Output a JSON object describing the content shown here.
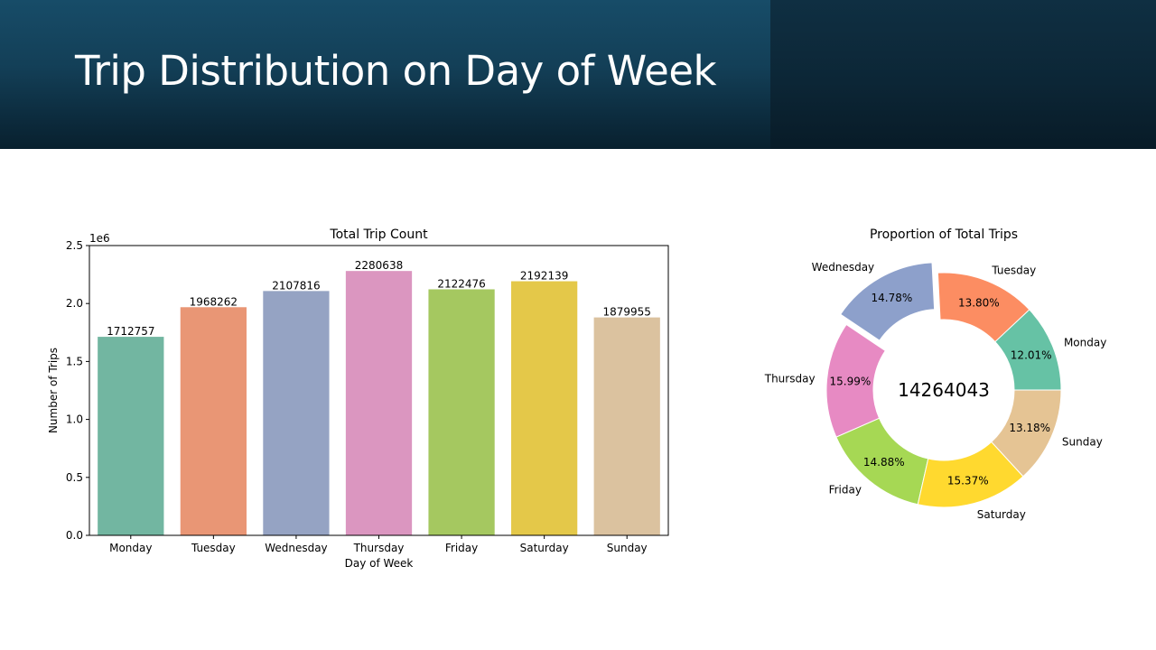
{
  "slide": {
    "title": "Trip Distribution on Day of Week"
  },
  "chart_data": [
    {
      "type": "bar",
      "title": "Total Trip Count",
      "xlabel": "Day of Week",
      "ylabel": "Number of Trips",
      "y_offset_label": "1e6",
      "ylim": [
        0,
        2500000
      ],
      "yticks": [
        0,
        500000,
        1000000,
        1500000,
        2000000,
        2500000
      ],
      "ytick_labels": [
        "0.0",
        "0.5",
        "1.0",
        "1.5",
        "2.0",
        "2.5"
      ],
      "categories": [
        "Monday",
        "Tuesday",
        "Wednesday",
        "Thursday",
        "Friday",
        "Saturday",
        "Sunday"
      ],
      "values": [
        1712757,
        1968262,
        2107816,
        2280638,
        2122476,
        2192139,
        1879955
      ],
      "data_labels": [
        "1712757",
        "1968262",
        "2107816",
        "2280638",
        "2122476",
        "2192139",
        "1879955"
      ],
      "colors": [
        "#72b6a1",
        "#e99675",
        "#95a3c3",
        "#db96c0",
        "#a5c860",
        "#e4c849",
        "#dbc29f"
      ],
      "grid": false,
      "legend": "none"
    },
    {
      "type": "pie",
      "title": "Proportion of Total Trips",
      "center_label": "14264043",
      "donut": true,
      "slices": [
        {
          "label": "Monday",
          "value": 12.01,
          "pct_label": "12.01%",
          "color": "#66c2a5",
          "exploded": false
        },
        {
          "label": "Tuesday",
          "value": 13.8,
          "pct_label": "13.80%",
          "color": "#fc8d62",
          "exploded": false
        },
        {
          "label": "Wednesday",
          "value": 14.78,
          "pct_label": "14.78%",
          "color": "#8da0cb",
          "exploded": true
        },
        {
          "label": "Thursday",
          "value": 15.99,
          "pct_label": "15.99%",
          "color": "#e78ac3",
          "exploded": false
        },
        {
          "label": "Friday",
          "value": 14.88,
          "pct_label": "14.88%",
          "color": "#a6d854",
          "exploded": false
        },
        {
          "label": "Saturday",
          "value": 15.37,
          "pct_label": "15.37%",
          "color": "#ffd92f",
          "exploded": false
        },
        {
          "label": "Sunday",
          "value": 13.18,
          "pct_label": "13.18%",
          "color": "#e5c494",
          "exploded": false
        }
      ],
      "legend": "none"
    }
  ]
}
